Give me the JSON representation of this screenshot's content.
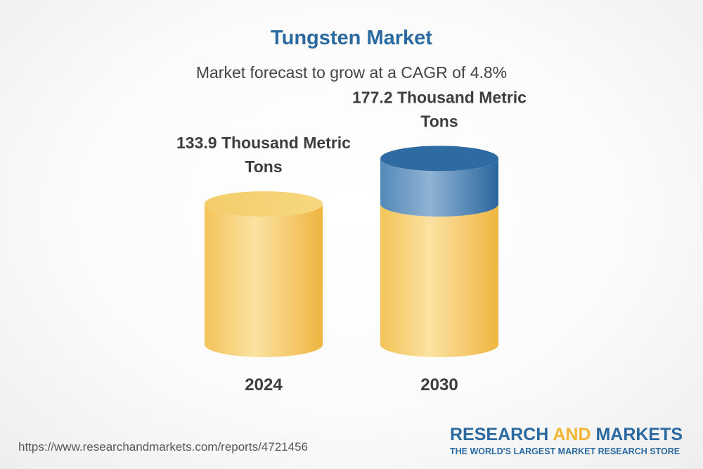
{
  "title": "Tungsten Market",
  "subtitle": "Market forecast to grow at a CAGR of 4.8%",
  "colors": {
    "title": "#2a6aa1",
    "bar_base": "#f2c24f",
    "bar_growth": "#2f6fa3",
    "text": "#3d3d3d"
  },
  "chart_data": {
    "type": "bar",
    "categories": [
      "2024",
      "2030"
    ],
    "values": [
      133.9,
      177.2
    ],
    "value_labels": [
      [
        "133.9 Thousand Metric",
        "Tons"
      ],
      [
        "177.2 Thousand Metric",
        "Tons"
      ]
    ],
    "unit": "Thousand Metric Tons",
    "cagr": "4.8%",
    "grid": false,
    "legend": "none"
  },
  "footer": {
    "source_url": "https://www.researchandmarkets.com/reports/4721456",
    "brand_part1": "RESEARCH ",
    "brand_part2": "AND",
    "brand_part3": " MARKETS",
    "brand_tagline": "THE WORLD'S LARGEST MARKET RESEARCH STORE"
  }
}
